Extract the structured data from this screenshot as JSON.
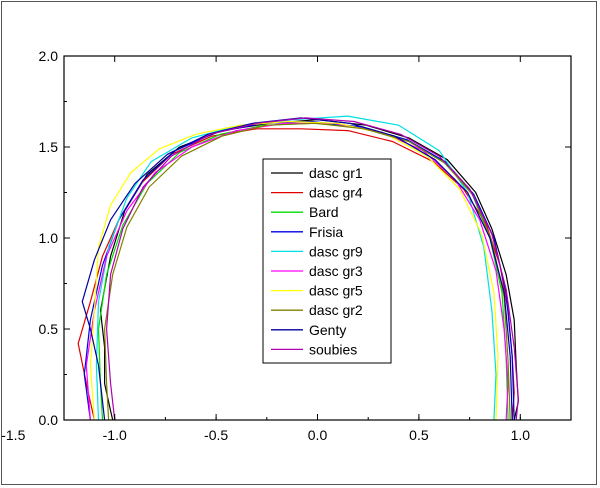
{
  "chart_data": {
    "type": "line",
    "title": "",
    "xlabel": "",
    "ylabel": "",
    "xlim": [
      -1.25,
      1.25
    ],
    "ylim": [
      0.0,
      2.0
    ],
    "xticks": [
      -1.5,
      -1.0,
      -0.5,
      0.0,
      0.5,
      1.0
    ],
    "xtick_labels": [
      "-1.5",
      "-1.0",
      "-0.5",
      "0.0",
      "0.5",
      "1.0"
    ],
    "yticks": [
      0.0,
      0.5,
      1.0,
      1.5,
      2.0
    ],
    "ytick_labels": [
      "0.0",
      "0.5",
      "1.0",
      "1.5",
      "2.0"
    ],
    "grid": false,
    "legend_position": "center",
    "series": [
      {
        "name": "dasc gr1",
        "color": "#000000",
        "x": [
          -1.01,
          -1.02,
          -1.05,
          -1.05,
          -1.07,
          -1.02,
          -0.95,
          -0.84,
          -0.68,
          -0.47,
          -0.24,
          0.0,
          0.24,
          0.45,
          0.64,
          0.78,
          0.86,
          0.93,
          0.97,
          0.98,
          0.99,
          0.97
        ],
        "y": [
          0.0,
          0.05,
          0.2,
          0.4,
          0.6,
          0.9,
          1.15,
          1.35,
          1.5,
          1.59,
          1.63,
          1.65,
          1.62,
          1.55,
          1.43,
          1.25,
          1.05,
          0.8,
          0.55,
          0.3,
          0.1,
          0.0
        ]
      },
      {
        "name": "dasc gr4",
        "color": "#e00000",
        "x": [
          -1.1,
          -1.13,
          -1.18,
          -1.12,
          -1.06,
          -0.98,
          -0.87,
          -0.72,
          -0.52,
          -0.3,
          -0.08,
          0.15,
          0.37,
          0.57,
          0.72,
          0.83,
          0.9,
          0.94,
          0.96,
          0.97,
          0.96
        ],
        "y": [
          0.0,
          0.15,
          0.42,
          0.65,
          0.9,
          1.1,
          1.3,
          1.46,
          1.56,
          1.6,
          1.6,
          1.59,
          1.53,
          1.42,
          1.27,
          1.08,
          0.85,
          0.6,
          0.35,
          0.15,
          0.0
        ]
      },
      {
        "name": "Bard",
        "color": "#00dd00",
        "x": [
          -1.06,
          -1.07,
          -1.08,
          -1.04,
          -0.96,
          -0.84,
          -0.68,
          -0.48,
          -0.26,
          -0.02,
          0.22,
          0.44,
          0.62,
          0.76,
          0.85,
          0.91,
          0.93,
          0.94
        ],
        "y": [
          0.0,
          0.2,
          0.5,
          0.8,
          1.07,
          1.3,
          1.47,
          1.57,
          1.62,
          1.63,
          1.61,
          1.54,
          1.42,
          1.25,
          1.0,
          0.7,
          0.35,
          0.0
        ]
      },
      {
        "name": "Frisia",
        "color": "#0000e0",
        "x": [
          -1.12,
          -1.15,
          -1.12,
          -1.06,
          -0.98,
          -0.86,
          -0.7,
          -0.5,
          -0.27,
          -0.03,
          0.22,
          0.44,
          0.63,
          0.77,
          0.87,
          0.93,
          0.96,
          0.97
        ],
        "y": [
          0.0,
          0.25,
          0.55,
          0.85,
          1.1,
          1.32,
          1.48,
          1.58,
          1.63,
          1.64,
          1.61,
          1.54,
          1.42,
          1.24,
          1.0,
          0.7,
          0.35,
          0.0
        ]
      },
      {
        "name": "dasc gr9",
        "color": "#00e0e0",
        "x": [
          -1.08,
          -1.09,
          -1.08,
          -1.03,
          -0.94,
          -0.82,
          -0.62,
          -0.38,
          -0.12,
          0.15,
          0.4,
          0.6,
          0.74,
          0.82,
          0.86,
          0.88,
          0.87
        ],
        "y": [
          0.0,
          0.3,
          0.65,
          0.95,
          1.22,
          1.42,
          1.55,
          1.62,
          1.65,
          1.67,
          1.62,
          1.48,
          1.25,
          0.95,
          0.6,
          0.25,
          0.0
        ]
      },
      {
        "name": "dasc gr3",
        "color": "#ff00ff",
        "x": [
          -1.12,
          -1.14,
          -1.1,
          -1.04,
          -0.94,
          -0.8,
          -0.62,
          -0.4,
          -0.16,
          0.08,
          0.32,
          0.52,
          0.68,
          0.8,
          0.88,
          0.92,
          0.94,
          0.93
        ],
        "y": [
          0.0,
          0.3,
          0.6,
          0.9,
          1.15,
          1.36,
          1.5,
          1.59,
          1.63,
          1.63,
          1.58,
          1.48,
          1.32,
          1.1,
          0.82,
          0.5,
          0.2,
          0.0
        ]
      },
      {
        "name": "dasc gr5",
        "color": "#ffff00",
        "x": [
          -1.1,
          -1.12,
          -1.1,
          -1.08,
          -1.02,
          -0.92,
          -0.78,
          -0.6,
          -0.38,
          -0.14,
          0.1,
          0.34,
          0.54,
          0.7,
          0.81,
          0.87,
          0.89,
          0.88
        ],
        "y": [
          0.0,
          0.3,
          0.6,
          0.95,
          1.18,
          1.36,
          1.49,
          1.57,
          1.62,
          1.64,
          1.63,
          1.57,
          1.45,
          1.27,
          1.02,
          0.7,
          0.35,
          0.0
        ]
      },
      {
        "name": "dasc gr2",
        "color": "#808000",
        "x": [
          -1.03,
          -1.04,
          -1.05,
          -1.01,
          -0.94,
          -0.83,
          -0.67,
          -0.47,
          -0.25,
          -0.01,
          0.23,
          0.45,
          0.63,
          0.77,
          0.86,
          0.92,
          0.94,
          0.95
        ],
        "y": [
          0.0,
          0.2,
          0.5,
          0.8,
          1.06,
          1.28,
          1.45,
          1.56,
          1.62,
          1.63,
          1.6,
          1.53,
          1.41,
          1.23,
          0.98,
          0.68,
          0.32,
          0.0
        ]
      },
      {
        "name": "Genty",
        "color": "#0000a0",
        "x": [
          -1.05,
          -1.08,
          -1.12,
          -1.16,
          -1.1,
          -1.02,
          -0.9,
          -0.74,
          -0.54,
          -0.32,
          -0.08,
          0.16,
          0.38,
          0.58,
          0.74,
          0.85,
          0.92,
          0.95,
          0.96
        ],
        "y": [
          0.0,
          0.3,
          0.5,
          0.65,
          0.88,
          1.1,
          1.3,
          1.46,
          1.57,
          1.63,
          1.66,
          1.63,
          1.56,
          1.43,
          1.25,
          1.0,
          0.7,
          0.35,
          0.0
        ]
      },
      {
        "name": "soubies",
        "color": "#b000b0",
        "x": [
          -1.0,
          -1.02,
          -1.04,
          -1.02,
          -0.96,
          -0.86,
          -0.72,
          -0.53,
          -0.3,
          -0.06,
          0.18,
          0.41,
          0.6,
          0.75,
          0.86,
          0.93,
          0.97,
          0.99,
          0.98
        ],
        "y": [
          0.0,
          0.2,
          0.5,
          0.8,
          1.05,
          1.28,
          1.45,
          1.57,
          1.63,
          1.66,
          1.64,
          1.57,
          1.45,
          1.27,
          1.02,
          0.72,
          0.4,
          0.12,
          0.0
        ]
      }
    ]
  }
}
